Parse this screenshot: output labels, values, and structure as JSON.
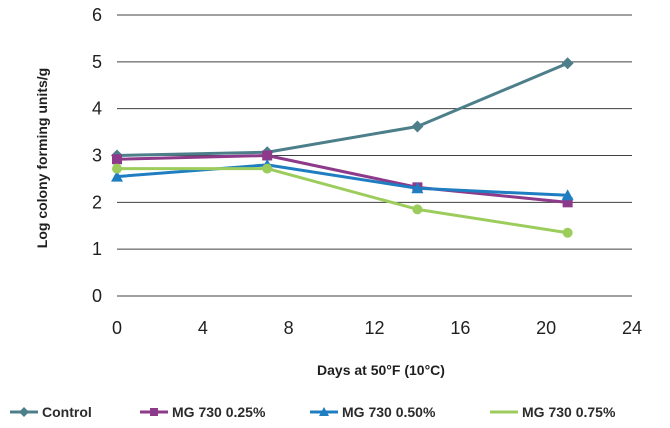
{
  "chart_data": {
    "type": "line",
    "title": "",
    "xlabel": "Days at 50°F (10°C)",
    "ylabel": "Log colony forming units/g",
    "xlim": [
      0,
      24
    ],
    "ylim": [
      0,
      6
    ],
    "xticks": [
      0,
      4,
      8,
      12,
      16,
      20,
      24
    ],
    "yticks": [
      0,
      1,
      2,
      3,
      4,
      5,
      6
    ],
    "grid": "horizontal",
    "legend_position": "bottom",
    "series": [
      {
        "name": "Control",
        "color": "#4d7f8a",
        "marker": "diamond",
        "points": [
          {
            "x": 0,
            "y": 3.0
          },
          {
            "x": 7,
            "y": 3.07
          },
          {
            "x": 14,
            "y": 3.62
          },
          {
            "x": 21,
            "y": 4.97
          }
        ]
      },
      {
        "name": "MG 730 0.25%",
        "color": "#8e3a8a",
        "marker": "square",
        "points": [
          {
            "x": 0,
            "y": 2.92
          },
          {
            "x": 7,
            "y": 3.0
          },
          {
            "x": 14,
            "y": 2.32
          },
          {
            "x": 21,
            "y": 2.0
          }
        ]
      },
      {
        "name": "MG 730 0.50%",
        "color": "#1f7ec2",
        "marker": "triangle",
        "points": [
          {
            "x": 0,
            "y": 2.55
          },
          {
            "x": 7,
            "y": 2.8
          },
          {
            "x": 14,
            "y": 2.3
          },
          {
            "x": 21,
            "y": 2.15
          }
        ]
      },
      {
        "name": "MG 730 0.75%",
        "color": "#9ccd5c",
        "marker": "circle",
        "points": [
          {
            "x": 0,
            "y": 2.72
          },
          {
            "x": 7,
            "y": 2.72
          },
          {
            "x": 14,
            "y": 1.85
          },
          {
            "x": 21,
            "y": 1.35
          }
        ]
      }
    ]
  }
}
